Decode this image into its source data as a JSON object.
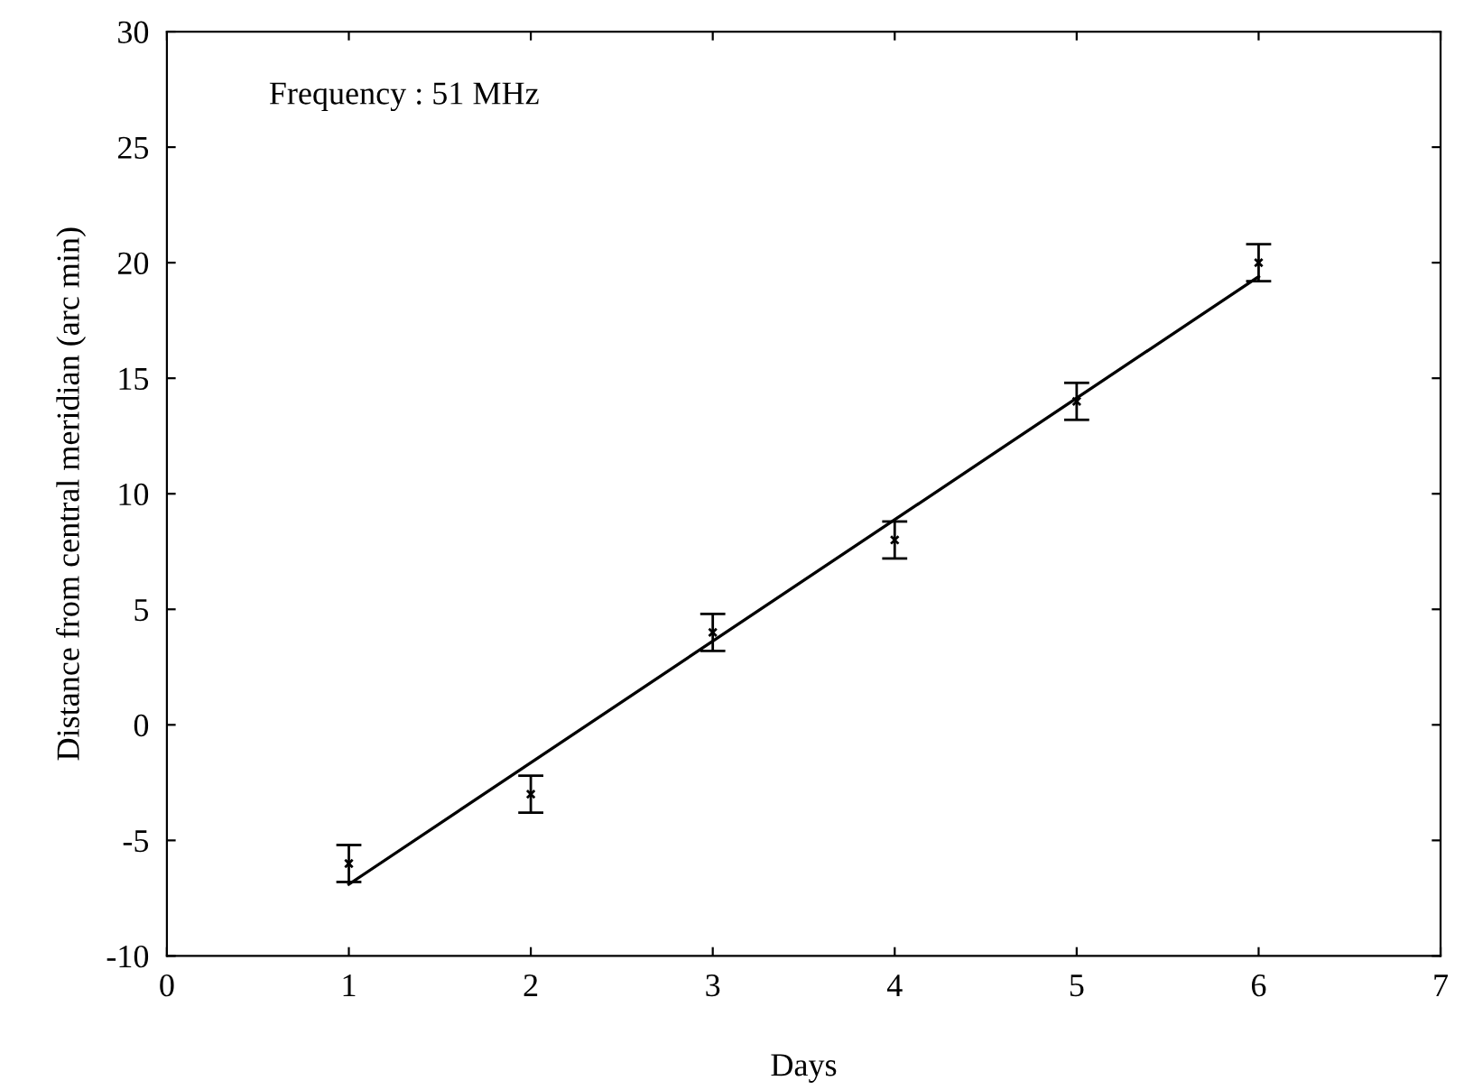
{
  "chart_data": {
    "type": "scatter",
    "xlabel": "Days",
    "ylabel": "Distance from central meridian (arc min)",
    "annotations": [
      "Frequency : 51 MHz"
    ],
    "xlim": [
      0,
      7
    ],
    "xticks": [
      0,
      1,
      2,
      3,
      4,
      5,
      6,
      7
    ],
    "ylim": [
      -10,
      30
    ],
    "yticks": [
      -10,
      -5,
      0,
      5,
      10,
      15,
      20,
      25,
      30
    ],
    "grid": false,
    "legend": false,
    "series": [
      {
        "color": "#000000",
        "marker": "cross",
        "x": [
          1,
          2,
          3,
          4,
          5,
          6
        ],
        "values": [
          -6,
          -3,
          4,
          8,
          14,
          20
        ],
        "errors": [
          0.8,
          0.8,
          0.8,
          0.8,
          0.8,
          0.8
        ]
      },
      {
        "type": "line",
        "color": "#000000",
        "marker": "none",
        "line_style": "solid",
        "x": [
          1,
          6
        ],
        "values": [
          -6.9,
          19.4
        ]
      }
    ]
  }
}
